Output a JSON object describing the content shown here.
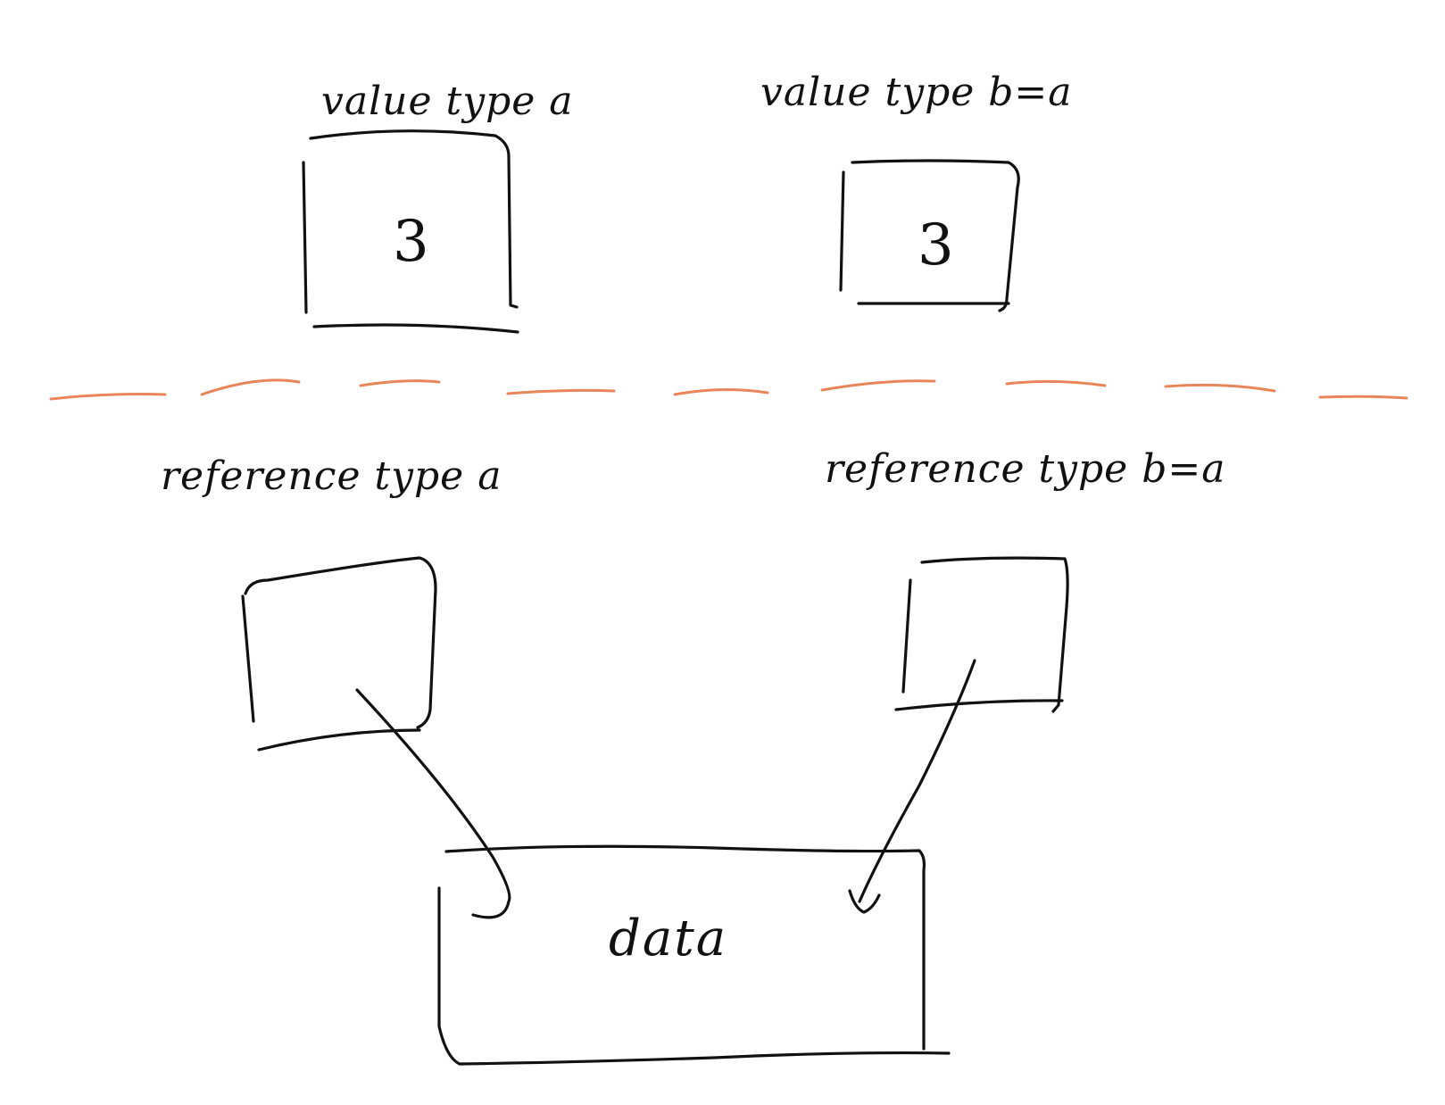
{
  "colors": {
    "ink": "#111111",
    "divider": "#e8865a",
    "background": "#ffffff"
  },
  "value_section": {
    "a": {
      "label": "value type  a",
      "value": "3"
    },
    "b": {
      "label": "value type  b=a",
      "value": "3"
    }
  },
  "reference_section": {
    "a": {
      "label": "reference type  a"
    },
    "b": {
      "label": "reference type  b=a"
    },
    "data": {
      "label": "data"
    }
  }
}
